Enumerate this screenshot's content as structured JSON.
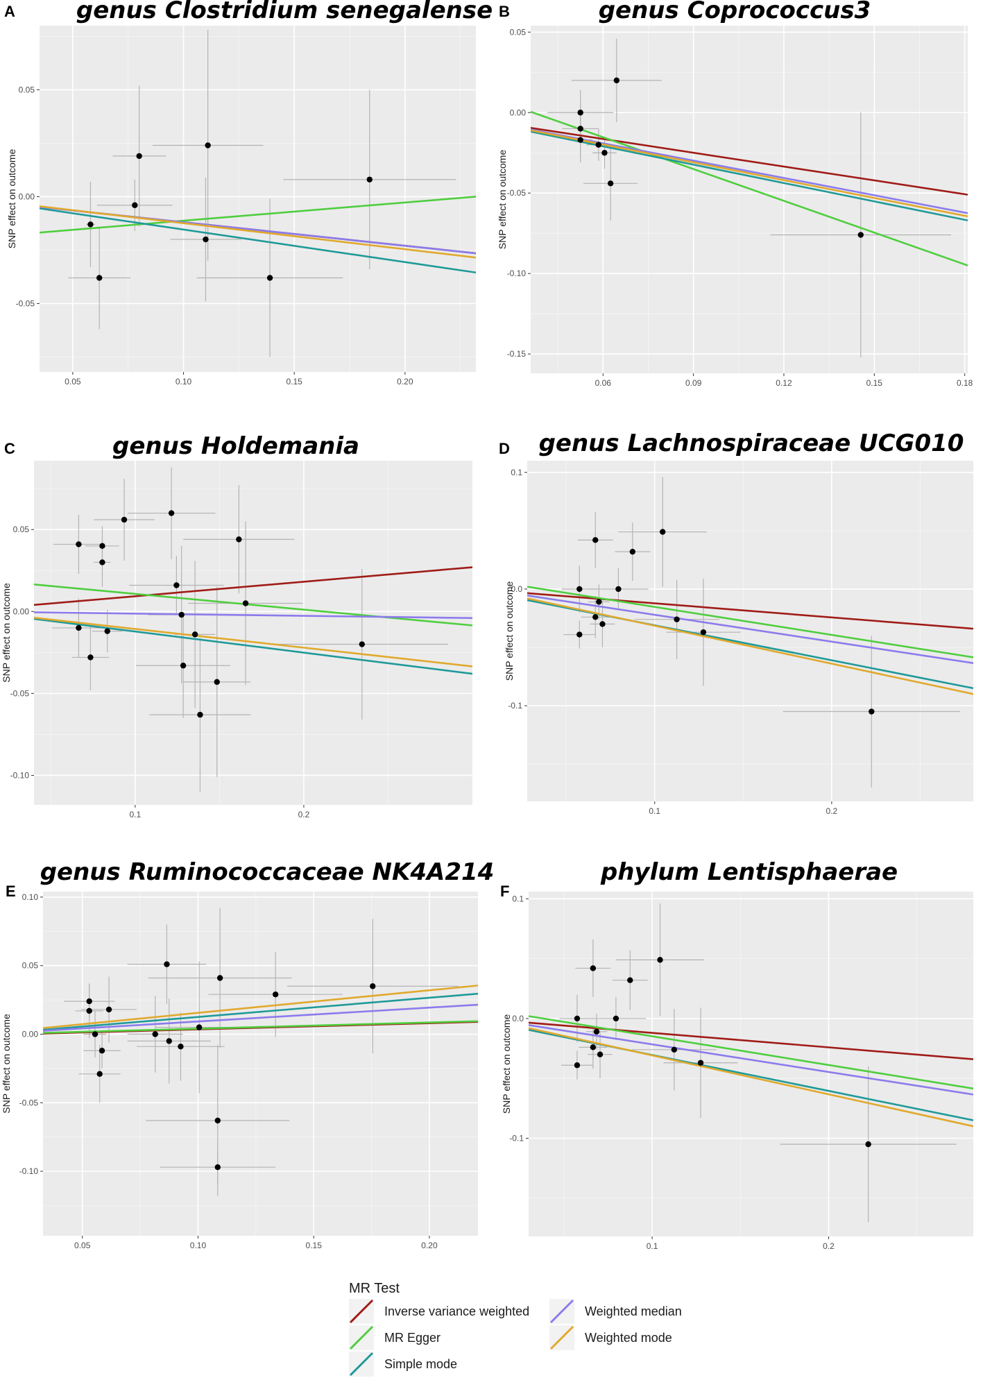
{
  "colors": {
    "background": "#ebebeb",
    "grid_major": "#ffffff",
    "point": "#000000",
    "errorbar": "#b3b3b3",
    "ivw": "#a01c17",
    "egger": "#4fce3e",
    "simple": "#1f9a98",
    "median": "#8b7bec",
    "wmode": "#e0a92d"
  },
  "legend": {
    "title": "MR Test",
    "items": [
      {
        "key": "ivw",
        "label": "Inverse variance weighted"
      },
      {
        "key": "egger",
        "label": "MR Egger"
      },
      {
        "key": "simple",
        "label": "Simple mode"
      },
      {
        "key": "median",
        "label": "Weighted median"
      },
      {
        "key": "wmode",
        "label": "Weighted mode"
      }
    ]
  },
  "chart_data": [
    {
      "id": "A",
      "type": "scatter",
      "title": "genus Clostridium senegalense",
      "ylabel": "SNP effect on outcome",
      "xlabel": "",
      "xlim": [
        0.035,
        0.232
      ],
      "ylim": [
        -0.082,
        0.08
      ],
      "xticks": [
        0.05,
        0.1,
        0.15,
        0.2
      ],
      "xtick_labels": [
        "0.05",
        "0.10",
        "0.15",
        "0.20"
      ],
      "yticks": [
        -0.05,
        0.0,
        0.05
      ],
      "ytick_labels": [
        "-0.05",
        "0.00",
        "0.05"
      ],
      "points": [
        {
          "x": 0.058,
          "y": -0.013,
          "xerr": 0.002,
          "yerr": 0.02
        },
        {
          "x": 0.062,
          "y": -0.038,
          "xerr": 0.014,
          "yerr": 0.024
        },
        {
          "x": 0.078,
          "y": -0.004,
          "xerr": 0.017,
          "yerr": 0.012
        },
        {
          "x": 0.08,
          "y": 0.019,
          "xerr": 0.012,
          "yerr": 0.033
        },
        {
          "x": 0.11,
          "y": -0.02,
          "xerr": 0.016,
          "yerr": 0.029
        },
        {
          "x": 0.111,
          "y": 0.024,
          "xerr": 0.025,
          "yerr": 0.054
        },
        {
          "x": 0.139,
          "y": -0.038,
          "xerr": 0.033,
          "yerr": 0.037
        },
        {
          "x": 0.184,
          "y": 0.008,
          "xerr": 0.039,
          "yerr": 0.042
        }
      ],
      "lines": [
        {
          "key": "ivw",
          "y0": -0.0048,
          "y1": -0.0265
        },
        {
          "key": "egger",
          "y0": -0.0168,
          "y1": 0.0
        },
        {
          "key": "simple",
          "y0": -0.0055,
          "y1": -0.0355
        },
        {
          "key": "median",
          "y0": -0.0048,
          "y1": -0.0265
        },
        {
          "key": "wmode",
          "y0": -0.0045,
          "y1": -0.0285
        }
      ]
    },
    {
      "id": "B",
      "type": "scatter",
      "title": "genus Coprococcus3",
      "ylabel": "SNP effect on outcome",
      "xlabel": "",
      "xlim": [
        0.036,
        0.181
      ],
      "ylim": [
        -0.162,
        0.054
      ],
      "xticks": [
        0.06,
        0.09,
        0.12,
        0.15,
        0.18
      ],
      "xtick_labels": [
        "0.06",
        "0.09",
        "0.12",
        "0.15",
        "0.18"
      ],
      "yticks": [
        -0.15,
        -0.1,
        -0.05,
        0.0,
        0.05
      ],
      "ytick_labels": [
        "-0.15",
        "-0.10",
        "-0.05",
        "0.00",
        "0.05"
      ],
      "points": [
        {
          "x": 0.0525,
          "y": 0.0,
          "xerr": 0.011,
          "yerr": 0.014
        },
        {
          "x": 0.0525,
          "y": -0.01,
          "xerr": 0.006,
          "yerr": 0.016
        },
        {
          "x": 0.0525,
          "y": -0.017,
          "xerr": 0.004,
          "yerr": 0.014
        },
        {
          "x": 0.0645,
          "y": 0.02,
          "xerr": 0.015,
          "yerr": 0.026
        },
        {
          "x": 0.0585,
          "y": -0.02,
          "xerr": 0.004,
          "yerr": 0.01
        },
        {
          "x": 0.0605,
          "y": -0.025,
          "xerr": 0.004,
          "yerr": 0.01
        },
        {
          "x": 0.0625,
          "y": -0.044,
          "xerr": 0.009,
          "yerr": 0.023
        },
        {
          "x": 0.1455,
          "y": -0.076,
          "xerr": 0.03,
          "yerr": 0.076
        }
      ],
      "lines": [
        {
          "key": "ivw",
          "y0": -0.0095,
          "y1": -0.051
        },
        {
          "key": "egger",
          "y0": 0.0005,
          "y1": -0.095
        },
        {
          "key": "simple",
          "y0": -0.0118,
          "y1": -0.067
        },
        {
          "key": "median",
          "y0": -0.0105,
          "y1": -0.0625
        },
        {
          "key": "wmode",
          "y0": -0.011,
          "y1": -0.0645
        }
      ]
    },
    {
      "id": "C",
      "type": "scatter",
      "title": "genus Holdemania",
      "ylabel": "SNP effect on outcome",
      "xlabel": "",
      "xlim": [
        0.04,
        0.3
      ],
      "ylim": [
        -0.118,
        0.092
      ],
      "xticks": [
        0.1,
        0.2
      ],
      "xtick_labels": [
        "0.1",
        "0.2"
      ],
      "yticks": [
        -0.1,
        -0.05,
        0.0,
        0.05
      ],
      "ytick_labels": [
        "-0.10",
        "-0.05",
        "0.00",
        "0.05"
      ],
      "points": [
        {
          "x": 0.0665,
          "y": 0.041,
          "xerr": 0.015,
          "yerr": 0.018
        },
        {
          "x": 0.0665,
          "y": -0.01,
          "xerr": 0.016,
          "yerr": 0.018
        },
        {
          "x": 0.0735,
          "y": -0.028,
          "xerr": 0.011,
          "yerr": 0.02
        },
        {
          "x": 0.0805,
          "y": 0.04,
          "xerr": 0.01,
          "yerr": 0.012
        },
        {
          "x": 0.0805,
          "y": 0.03,
          "xerr": 0.005,
          "yerr": 0.015
        },
        {
          "x": 0.0835,
          "y": -0.012,
          "xerr": 0.009,
          "yerr": 0.013
        },
        {
          "x": 0.0935,
          "y": 0.056,
          "xerr": 0.018,
          "yerr": 0.025
        },
        {
          "x": 0.1215,
          "y": 0.06,
          "xerr": 0.026,
          "yerr": 0.028
        },
        {
          "x": 0.1245,
          "y": 0.016,
          "xerr": 0.028,
          "yerr": 0.018
        },
        {
          "x": 0.1275,
          "y": -0.002,
          "xerr": 0.02,
          "yerr": 0.042
        },
        {
          "x": 0.1285,
          "y": -0.033,
          "xerr": 0.028,
          "yerr": 0.032
        },
        {
          "x": 0.1355,
          "y": -0.014,
          "xerr": 0.012,
          "yerr": 0.045
        },
        {
          "x": 0.1385,
          "y": -0.063,
          "xerr": 0.03,
          "yerr": 0.047
        },
        {
          "x": 0.1485,
          "y": -0.043,
          "xerr": 0.02,
          "yerr": 0.058
        },
        {
          "x": 0.1615,
          "y": 0.044,
          "xerr": 0.033,
          "yerr": 0.033
        },
        {
          "x": 0.1655,
          "y": 0.005,
          "xerr": 0.034,
          "yerr": 0.05
        },
        {
          "x": 0.2345,
          "y": -0.02,
          "xerr": 0.051,
          "yerr": 0.046
        }
      ],
      "lines": [
        {
          "key": "ivw",
          "y0": 0.004,
          "y1": 0.027
        },
        {
          "key": "egger",
          "y0": 0.0165,
          "y1": -0.0085
        },
        {
          "key": "simple",
          "y0": -0.0045,
          "y1": -0.038
        },
        {
          "key": "median",
          "y0": -0.0005,
          "y1": -0.004
        },
        {
          "key": "wmode",
          "y0": -0.0038,
          "y1": -0.0335
        }
      ]
    },
    {
      "id": "D",
      "type": "scatter",
      "title": "genus Lachnospiraceae UCG010",
      "ylabel": "SNP effect on outcome",
      "xlabel": "",
      "xlim": [
        0.028,
        0.28
      ],
      "ylim": [
        -0.182,
        0.11
      ],
      "xticks": [
        0.1,
        0.2
      ],
      "xtick_labels": [
        "0.1",
        "0.2"
      ],
      "yticks": [
        -0.1,
        0.0,
        0.1
      ],
      "ytick_labels": [
        "-0.1",
        "0.0",
        "0.1"
      ],
      "points": [
        {
          "x": 0.0575,
          "y": 0.0,
          "xerr": 0.01,
          "yerr": 0.02
        },
        {
          "x": 0.0575,
          "y": -0.039,
          "xerr": 0.009,
          "yerr": 0.012
        },
        {
          "x": 0.0665,
          "y": 0.042,
          "xerr": 0.01,
          "yerr": 0.024
        },
        {
          "x": 0.0665,
          "y": -0.024,
          "xerr": 0.008,
          "yerr": 0.018
        },
        {
          "x": 0.0685,
          "y": -0.011,
          "xerr": 0.006,
          "yerr": 0.015
        },
        {
          "x": 0.0705,
          "y": -0.03,
          "xerr": 0.007,
          "yerr": 0.02
        },
        {
          "x": 0.0795,
          "y": 0.0,
          "xerr": 0.017,
          "yerr": 0.018
        },
        {
          "x": 0.0875,
          "y": 0.032,
          "xerr": 0.01,
          "yerr": 0.025
        },
        {
          "x": 0.1045,
          "y": 0.049,
          "xerr": 0.025,
          "yerr": 0.047
        },
        {
          "x": 0.1125,
          "y": -0.026,
          "xerr": 0.024,
          "yerr": 0.034
        },
        {
          "x": 0.1275,
          "y": -0.037,
          "xerr": 0.021,
          "yerr": 0.046
        },
        {
          "x": 0.2225,
          "y": -0.105,
          "xerr": 0.05,
          "yerr": 0.065
        }
      ],
      "lines": [
        {
          "key": "ivw",
          "y0": -0.0035,
          "y1": -0.034
        },
        {
          "key": "egger",
          "y0": 0.002,
          "y1": -0.0585
        },
        {
          "key": "simple",
          "y0": -0.0095,
          "y1": -0.085
        },
        {
          "key": "median",
          "y0": -0.0055,
          "y1": -0.0635
        },
        {
          "key": "wmode",
          "y0": -0.008,
          "y1": -0.09
        }
      ]
    },
    {
      "id": "E",
      "type": "scatter",
      "title": "genus Ruminococcaceae NK4A214",
      "ylabel": "SNP effect on outcome",
      "xlabel": "",
      "xlim": [
        0.033,
        0.221
      ],
      "ylim": [
        -0.147,
        0.104
      ],
      "xticks": [
        0.05,
        0.1,
        0.15,
        0.2
      ],
      "xtick_labels": [
        "0.05",
        "0.10",
        "0.15",
        "0.20"
      ],
      "yticks": [
        -0.1,
        -0.05,
        0.0,
        0.05,
        0.1
      ],
      "ytick_labels": [
        "-0.10",
        "-0.05",
        "0.00",
        "0.05",
        "0.10"
      ],
      "points": [
        {
          "x": 0.053,
          "y": 0.024,
          "xerr": 0.011,
          "yerr": 0.012
        },
        {
          "x": 0.053,
          "y": 0.017,
          "xerr": 0.006,
          "yerr": 0.02
        },
        {
          "x": 0.0555,
          "y": 0.0,
          "xerr": 0.005,
          "yerr": 0.017
        },
        {
          "x": 0.0575,
          "y": -0.029,
          "xerr": 0.009,
          "yerr": 0.021
        },
        {
          "x": 0.0585,
          "y": -0.012,
          "xerr": 0.008,
          "yerr": 0.013
        },
        {
          "x": 0.0615,
          "y": 0.018,
          "xerr": 0.012,
          "yerr": 0.024
        },
        {
          "x": 0.0815,
          "y": 0.0,
          "xerr": 0.012,
          "yerr": 0.028
        },
        {
          "x": 0.0865,
          "y": 0.051,
          "xerr": 0.017,
          "yerr": 0.029
        },
        {
          "x": 0.0875,
          "y": -0.005,
          "xerr": 0.018,
          "yerr": 0.031
        },
        {
          "x": 0.0925,
          "y": -0.009,
          "xerr": 0.019,
          "yerr": 0.025
        },
        {
          "x": 0.1005,
          "y": 0.005,
          "xerr": 0.019,
          "yerr": 0.048
        },
        {
          "x": 0.1085,
          "y": -0.063,
          "xerr": 0.031,
          "yerr": 0.055
        },
        {
          "x": 0.1085,
          "y": -0.097,
          "xerr": 0.025,
          "yerr": 0.012
        },
        {
          "x": 0.1095,
          "y": 0.041,
          "xerr": 0.031,
          "yerr": 0.051
        },
        {
          "x": 0.1335,
          "y": 0.029,
          "xerr": 0.029,
          "yerr": 0.031
        },
        {
          "x": 0.1755,
          "y": 0.035,
          "xerr": 0.037,
          "yerr": 0.049
        }
      ],
      "lines": [
        {
          "key": "ivw",
          "y0": 0.0005,
          "y1": 0.009
        },
        {
          "key": "egger",
          "y0": 0.001,
          "y1": 0.0095
        },
        {
          "key": "simple",
          "y0": 0.0032,
          "y1": 0.0295
        },
        {
          "key": "median",
          "y0": 0.0025,
          "y1": 0.0215
        },
        {
          "key": "wmode",
          "y0": 0.0045,
          "y1": 0.0355
        }
      ]
    },
    {
      "id": "F",
      "type": "scatter",
      "title": "phylum Lentisphaerae",
      "ylabel": "SNP effect on outcome",
      "xlabel": "",
      "xlim": [
        0.03,
        0.282
      ],
      "ylim": [
        -0.182,
        0.106
      ],
      "xticks": [
        0.1,
        0.2
      ],
      "xtick_labels": [
        "0.1",
        "0.2"
      ],
      "yticks": [
        -0.1,
        0.0,
        0.1
      ],
      "ytick_labels": [
        "-0.1",
        "0.0",
        "0.1"
      ],
      "points": [
        {
          "x": 0.0575,
          "y": 0.0,
          "xerr": 0.01,
          "yerr": 0.02
        },
        {
          "x": 0.0575,
          "y": -0.039,
          "xerr": 0.009,
          "yerr": 0.012
        },
        {
          "x": 0.0665,
          "y": 0.042,
          "xerr": 0.01,
          "yerr": 0.024
        },
        {
          "x": 0.0665,
          "y": -0.024,
          "xerr": 0.008,
          "yerr": 0.018
        },
        {
          "x": 0.0685,
          "y": -0.011,
          "xerr": 0.006,
          "yerr": 0.015
        },
        {
          "x": 0.0705,
          "y": -0.03,
          "xerr": 0.007,
          "yerr": 0.02
        },
        {
          "x": 0.0795,
          "y": 0.0,
          "xerr": 0.017,
          "yerr": 0.018
        },
        {
          "x": 0.0875,
          "y": 0.032,
          "xerr": 0.01,
          "yerr": 0.025
        },
        {
          "x": 0.1045,
          "y": 0.049,
          "xerr": 0.025,
          "yerr": 0.047
        },
        {
          "x": 0.1125,
          "y": -0.026,
          "xerr": 0.024,
          "yerr": 0.034
        },
        {
          "x": 0.1275,
          "y": -0.037,
          "xerr": 0.021,
          "yerr": 0.046
        },
        {
          "x": 0.2225,
          "y": -0.105,
          "xerr": 0.05,
          "yerr": 0.065
        }
      ],
      "lines": [
        {
          "key": "ivw",
          "y0": -0.0035,
          "y1": -0.034
        },
        {
          "key": "egger",
          "y0": 0.002,
          "y1": -0.0585
        },
        {
          "key": "simple",
          "y0": -0.0095,
          "y1": -0.085
        },
        {
          "key": "median",
          "y0": -0.0055,
          "y1": -0.0635
        },
        {
          "key": "wmode",
          "y0": -0.008,
          "y1": -0.09
        }
      ]
    }
  ]
}
